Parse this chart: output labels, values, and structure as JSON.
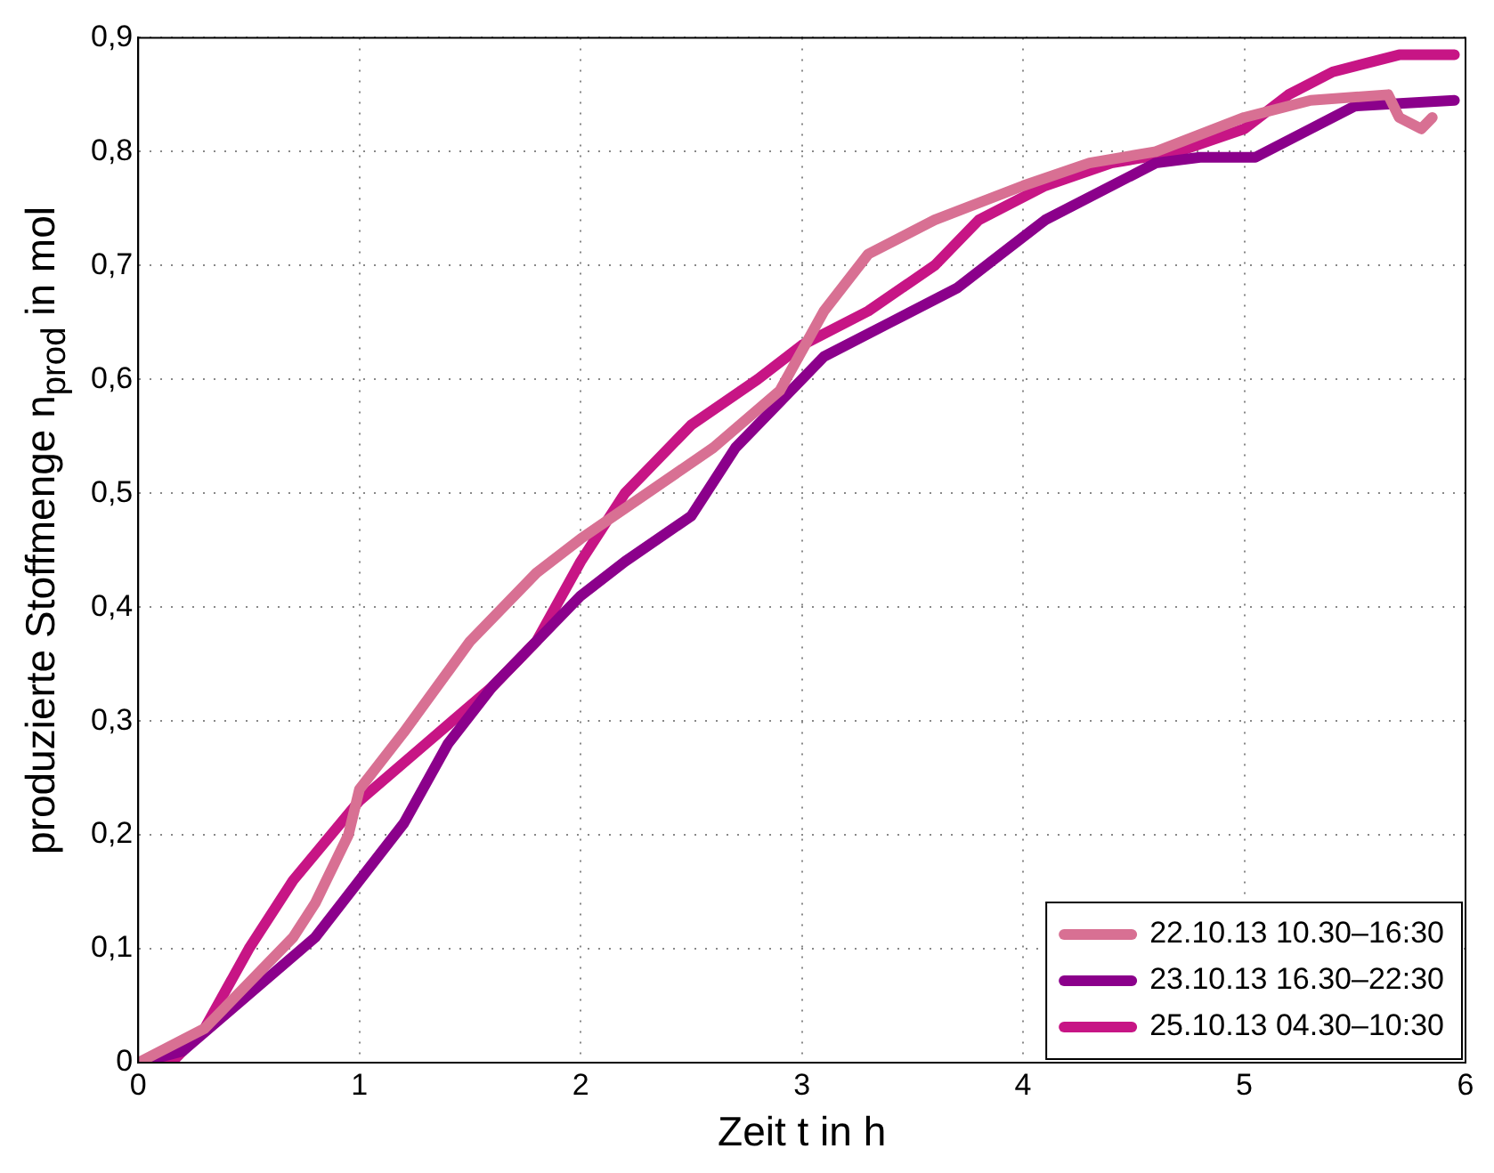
{
  "chart_data": {
    "type": "line",
    "xlabel": "Zeit t in h",
    "ylabel": "produzierte Stoffmenge n$_{prod}$ in mol",
    "xlim": [
      0,
      6
    ],
    "xticks": [
      0,
      1,
      2,
      3,
      4,
      5,
      6
    ],
    "ylim": [
      0,
      0.9
    ],
    "yticks": [
      0,
      {
        "value": 0.1,
        "label": "0,1"
      },
      {
        "value": 0.2,
        "label": "0,2"
      },
      {
        "value": 0.3,
        "label": "0,3"
      },
      {
        "value": 0.4,
        "label": "0,4"
      },
      {
        "value": 0.5,
        "label": "0,5"
      },
      {
        "value": 0.6,
        "label": "0,6"
      },
      {
        "value": 0.7,
        "label": "0,7"
      },
      {
        "value": 0.8,
        "label": "0,8"
      },
      {
        "value": 0.9,
        "label": "0,9"
      }
    ],
    "grid": true,
    "legend": "bottom right",
    "marker": "none",
    "line_style": "solid",
    "series": [
      {
        "name": "22.10.13 10.30–16:30",
        "color": "#d87093",
        "x": [
          0,
          0.3,
          0.5,
          0.7,
          0.8,
          0.95,
          1.0,
          1.2,
          1.5,
          1.8,
          2.0,
          2.3,
          2.6,
          2.9,
          3.1,
          3.3,
          3.6,
          4.0,
          4.3,
          4.6,
          5.0,
          5.3,
          5.65,
          5.7,
          5.8,
          5.85
        ],
        "values": [
          0,
          0.03,
          0.07,
          0.11,
          0.14,
          0.2,
          0.24,
          0.29,
          0.37,
          0.43,
          0.46,
          0.5,
          0.54,
          0.59,
          0.66,
          0.71,
          0.74,
          0.77,
          0.79,
          0.8,
          0.83,
          0.845,
          0.85,
          0.83,
          0.82,
          0.83
        ]
      },
      {
        "name": "23.10.13 16.30–22:30",
        "color": "#8b008b",
        "x": [
          0,
          0.2,
          0.5,
          0.8,
          1.0,
          1.2,
          1.4,
          1.6,
          1.8,
          2.0,
          2.2,
          2.5,
          2.7,
          2.9,
          3.1,
          3.4,
          3.7,
          3.9,
          4.1,
          4.4,
          4.6,
          4.8,
          5.05,
          5.3,
          5.5,
          5.95
        ],
        "values": [
          0,
          0.01,
          0.06,
          0.11,
          0.16,
          0.21,
          0.28,
          0.33,
          0.37,
          0.41,
          0.44,
          0.48,
          0.54,
          0.58,
          0.62,
          0.65,
          0.68,
          0.71,
          0.74,
          0.77,
          0.79,
          0.795,
          0.795,
          0.82,
          0.84,
          0.845
        ]
      },
      {
        "name": "25.10.13 04.30–10:30",
        "color": "#c71585",
        "x": [
          0,
          0.15,
          0.3,
          0.5,
          0.7,
          1.0,
          1.3,
          1.6,
          1.8,
          2.0,
          2.2,
          2.5,
          2.8,
          3.0,
          3.3,
          3.6,
          3.8,
          4.1,
          4.4,
          4.7,
          5.0,
          5.2,
          5.4,
          5.7,
          5.95
        ],
        "values": [
          0,
          0,
          0.03,
          0.1,
          0.16,
          0.23,
          0.28,
          0.33,
          0.37,
          0.44,
          0.5,
          0.56,
          0.6,
          0.63,
          0.66,
          0.7,
          0.74,
          0.77,
          0.79,
          0.8,
          0.82,
          0.85,
          0.87,
          0.885,
          0.885
        ]
      }
    ]
  }
}
